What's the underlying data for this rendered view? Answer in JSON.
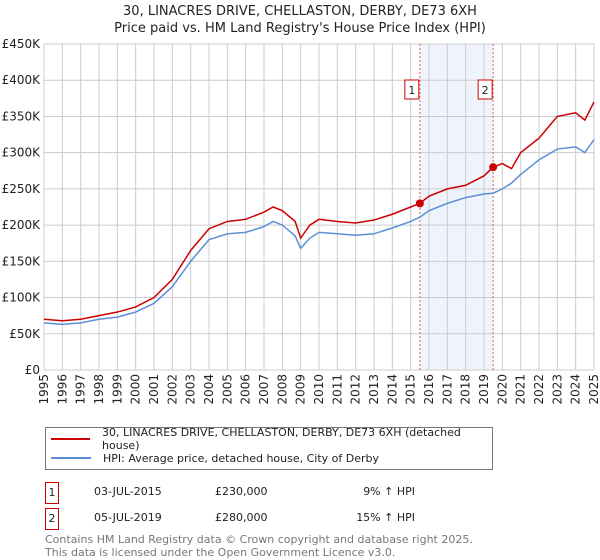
{
  "chart_data": {
    "type": "line",
    "title": "30, LINACRES DRIVE, CHELLASTON, DERBY, DE73 6XH",
    "subtitle": "Price paid vs. HM Land Registry's House Price Index (HPI)",
    "xlim": [
      1995,
      2025
    ],
    "ylim": [
      0,
      450000
    ],
    "y_ticks": [
      {
        "v": 0,
        "l": "£0"
      },
      {
        "v": 50000,
        "l": "£50K"
      },
      {
        "v": 100000,
        "l": "£100K"
      },
      {
        "v": 150000,
        "l": "£150K"
      },
      {
        "v": 200000,
        "l": "£200K"
      },
      {
        "v": 250000,
        "l": "£250K"
      },
      {
        "v": 300000,
        "l": "£300K"
      },
      {
        "v": 350000,
        "l": "£350K"
      },
      {
        "v": 400000,
        "l": "£400K"
      },
      {
        "v": 450000,
        "l": "£450K"
      }
    ],
    "x_ticks": [
      "1995",
      "1996",
      "1997",
      "1998",
      "1999",
      "2000",
      "2001",
      "2002",
      "2003",
      "2004",
      "2005",
      "2006",
      "2007",
      "2008",
      "2009",
      "2010",
      "2011",
      "2012",
      "2013",
      "2014",
      "2015",
      "2016",
      "2017",
      "2018",
      "2019",
      "2020",
      "2021",
      "2022",
      "2023",
      "2024",
      "2025"
    ],
    "grid": true,
    "series": [
      {
        "name": "30, LINACRES DRIVE, CHELLASTON, DERBY, DE73 6XH (detached house)",
        "color": "#cc0000",
        "x": [
          1995,
          1996,
          1997,
          1998,
          1999,
          2000,
          2001,
          2002,
          2003,
          2004,
          2005,
          2006,
          2007,
          2007.5,
          2008,
          2008.7,
          2009,
          2009.5,
          2010,
          2011,
          2012,
          2013,
          2014,
          2015,
          2015.5,
          2016,
          2017,
          2018,
          2019,
          2019.5,
          2020,
          2020.5,
          2021,
          2022,
          2023,
          2024,
          2024.5,
          2025
        ],
        "y": [
          70000,
          68000,
          70000,
          75000,
          80000,
          87000,
          100000,
          125000,
          165000,
          195000,
          205000,
          208000,
          218000,
          225000,
          220000,
          205000,
          182000,
          200000,
          208000,
          205000,
          203000,
          207000,
          215000,
          225000,
          230000,
          240000,
          250000,
          255000,
          268000,
          280000,
          285000,
          278000,
          300000,
          320000,
          350000,
          355000,
          345000,
          370000
        ]
      },
      {
        "name": "HPI: Average price, detached house, City of Derby",
        "color": "#5b8fd6",
        "x": [
          1995,
          1996,
          1997,
          1998,
          1999,
          2000,
          2001,
          2002,
          2003,
          2004,
          2005,
          2006,
          2007,
          2007.5,
          2008,
          2008.7,
          2009,
          2009.5,
          2010,
          2011,
          2012,
          2013,
          2014,
          2015,
          2015.5,
          2016,
          2017,
          2018,
          2019,
          2019.5,
          2020,
          2020.5,
          2021,
          2022,
          2023,
          2024,
          2024.5,
          2025
        ],
        "y": [
          65000,
          63000,
          65000,
          70000,
          73000,
          80000,
          92000,
          115000,
          150000,
          180000,
          188000,
          190000,
          198000,
          205000,
          200000,
          185000,
          168000,
          182000,
          190000,
          188000,
          186000,
          188000,
          196000,
          205000,
          211000,
          220000,
          230000,
          238000,
          243000,
          244000,
          250000,
          258000,
          270000,
          290000,
          305000,
          308000,
          300000,
          318000
        ]
      }
    ],
    "sales": [
      {
        "label": "1",
        "x": 2015.5,
        "y": 230000
      },
      {
        "label": "2",
        "x": 2019.5,
        "y": 280000
      }
    ],
    "legend": "below"
  },
  "legend": {
    "red": "30, LINACRES DRIVE, CHELLASTON, DERBY, DE73 6XH (detached house)",
    "blue": "HPI: Average price, detached house, City of Derby"
  },
  "sales_table": [
    {
      "n": "1",
      "date": "03-JUL-2015",
      "price": "£230,000",
      "hpi": "9% ↑ HPI"
    },
    {
      "n": "2",
      "date": "05-JUL-2019",
      "price": "£280,000",
      "hpi": "15% ↑ HPI"
    }
  ],
  "footer": {
    "line1": "Contains HM Land Registry data © Crown copyright and database right 2025.",
    "line2": "This data is licensed under the Open Government Licence v3.0."
  }
}
